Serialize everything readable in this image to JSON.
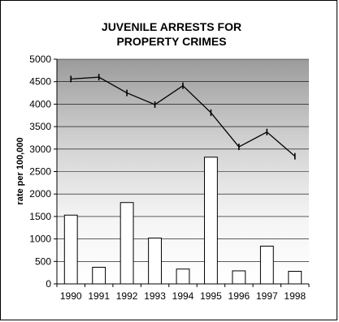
{
  "chart_data": {
    "type": "bar",
    "title_lines": [
      "JUVENILE ARRESTS FOR",
      "PROPERTY CRIMES"
    ],
    "xlabel": "",
    "ylabel": "rate per 100,000",
    "categories": [
      "1990",
      "1991",
      "1992",
      "1993",
      "1994",
      "1995",
      "1996",
      "1997",
      "1998"
    ],
    "ylim": [
      0,
      5000
    ],
    "yticks": [
      "0",
      "500",
      "1000",
      "1500",
      "2000",
      "2500",
      "3000",
      "3500",
      "4000",
      "4500",
      "5000"
    ],
    "series": [
      {
        "kind": "bar",
        "values": [
          1530,
          370,
          1810,
          1020,
          330,
          2820,
          290,
          840,
          280
        ],
        "color": "#ffffff"
      },
      {
        "kind": "line",
        "values": [
          4560,
          4600,
          4250,
          3990,
          4410,
          3810,
          3050,
          3380,
          2840
        ],
        "color": "#000000"
      }
    ],
    "grid": true,
    "legend": "none"
  }
}
